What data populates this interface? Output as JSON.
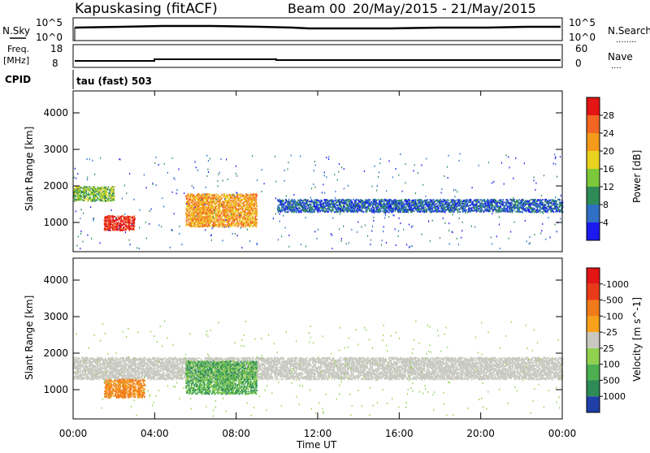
{
  "header": {
    "site": "Kapuskasing (fitACF)",
    "beam": "Beam 00",
    "date_range": "20/May/2015 - 21/May/2015"
  },
  "nsky_panel": {
    "left_label": "N.Sky",
    "right_label": "N.Search",
    "right_dots": "........",
    "ticks_left": [
      "10^5",
      "10^0"
    ],
    "ticks_right": [
      "10^5",
      "10^0"
    ]
  },
  "freq_panel": {
    "left_label_1": "Freq.",
    "left_label_2": "[MHz]",
    "right_label": "Nave",
    "right_dots": "....",
    "ticks_left": [
      "18",
      "8"
    ],
    "ticks_right": [
      "60",
      "0"
    ]
  },
  "cpid": {
    "label": "CPID",
    "value": "tau (fast) 503"
  },
  "chart_data": [
    {
      "type": "heatmap",
      "name": "power",
      "xlabel": "",
      "ylabel": "Slant Range [km]",
      "ylim": [
        200,
        4600
      ],
      "yticks": [
        "1000",
        "2000",
        "3000",
        "4000"
      ],
      "colorbar": {
        "label": "Power [dB]",
        "ticks": [
          "4",
          "8",
          "12",
          "16",
          "20",
          "24",
          "28"
        ],
        "colors": [
          "#1a1aee",
          "#2f6fc4",
          "#2e8b57",
          "#7dc83a",
          "#e8d21e",
          "#f59a1a",
          "#f26522",
          "#e31515"
        ]
      },
      "bands": [
        {
          "t0": 0.0,
          "t1": 2.0,
          "r0": 1600,
          "r1": 2000,
          "level": "green"
        },
        {
          "t0": 1.5,
          "t1": 3.0,
          "r0": 800,
          "r1": 1200,
          "level": "red"
        },
        {
          "t0": 5.5,
          "t1": 9.0,
          "r0": 900,
          "r1": 1800,
          "level": "orange"
        },
        {
          "t0": 10.0,
          "t1": 24.0,
          "r0": 1300,
          "r1": 1650,
          "level": "blue"
        }
      ]
    },
    {
      "type": "heatmap",
      "name": "velocity",
      "xlabel": "Time UT",
      "ylabel": "Slant Range [km]",
      "ylim": [
        200,
        4600
      ],
      "yticks": [
        "1000",
        "2000",
        "3000",
        "4000"
      ],
      "xticks": [
        "00:00",
        "04:00",
        "08:00",
        "12:00",
        "16:00",
        "20:00",
        "00:00"
      ],
      "colorbar": {
        "label": "Velocity [m s^-1]",
        "ticks": [
          "1000",
          "500",
          "100",
          "25",
          "-25",
          "-100",
          "-500",
          "-1000"
        ],
        "colors": [
          "#1f3ea8",
          "#2e8b57",
          "#4caf50",
          "#8fd14f",
          "#c8c8c0",
          "#f7a21a",
          "#f07a1a",
          "#e83a18",
          "#e31515"
        ]
      },
      "bands": [
        {
          "t0": 0.0,
          "t1": 24.0,
          "r0": 1300,
          "r1": 1900,
          "level": "grey"
        },
        {
          "t0": 1.5,
          "t1": 3.5,
          "r0": 800,
          "r1": 1300,
          "level": "orange"
        },
        {
          "t0": 5.5,
          "t1": 9.0,
          "r0": 900,
          "r1": 1800,
          "level": "green"
        }
      ]
    }
  ]
}
